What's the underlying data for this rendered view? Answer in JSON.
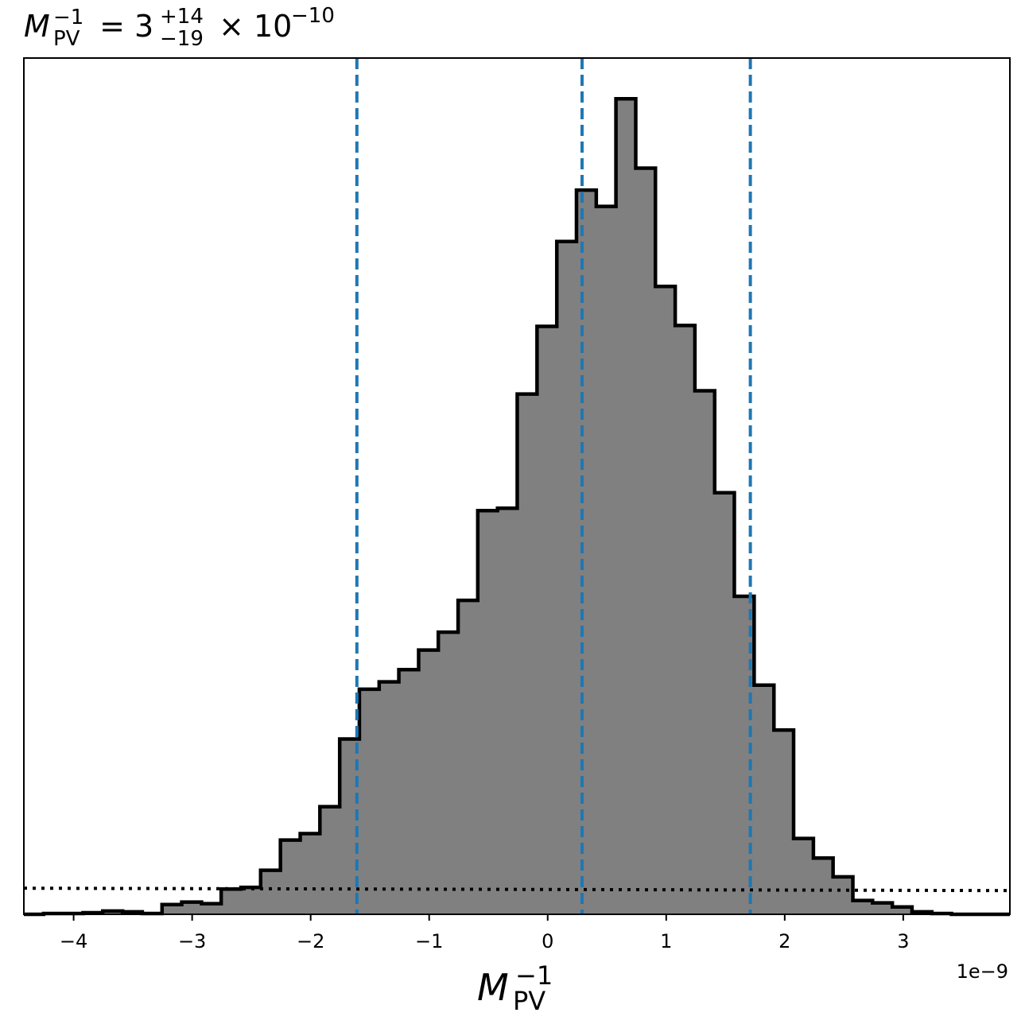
{
  "chart_data": {
    "type": "histogram",
    "title": {
      "base": "M",
      "sup": "−1",
      "sub": "PV",
      "equals": " = 3",
      "plus": "+14",
      "minus": "−19",
      "times": " × 10",
      "exp": "−10"
    },
    "xlabel": {
      "base": "M",
      "sup": "−1",
      "sub": "PV"
    },
    "offset_text": "1e−9",
    "xlim": [
      -4.42,
      3.9
    ],
    "ylim": [
      0,
      1.05
    ],
    "x_ticks": [
      {
        "value": -4,
        "label": "−4"
      },
      {
        "value": -3,
        "label": "−3"
      },
      {
        "value": -2,
        "label": "−2"
      },
      {
        "value": -1,
        "label": "−1"
      },
      {
        "value": 0,
        "label": "0"
      },
      {
        "value": 1,
        "label": "1"
      },
      {
        "value": 2,
        "label": "2"
      },
      {
        "value": 3,
        "label": "3"
      }
    ],
    "bin_edges": [
      -4.42,
      -4.253,
      -4.087,
      -3.92,
      -3.754,
      -3.587,
      -3.421,
      -3.254,
      -3.088,
      -2.921,
      -2.755,
      -2.588,
      -2.422,
      -2.255,
      -2.088,
      -1.922,
      -1.755,
      -1.589,
      -1.422,
      -1.256,
      -1.089,
      -0.923,
      -0.756,
      -0.59,
      -0.423,
      -0.257,
      -0.09,
      0.077,
      0.243,
      0.41,
      0.576,
      0.743,
      0.909,
      1.076,
      1.242,
      1.409,
      1.575,
      1.742,
      1.909,
      2.075,
      2.242,
      2.408,
      2.575,
      2.741,
      2.908,
      3.074,
      3.241,
      3.407,
      3.574,
      3.74,
      3.9
    ],
    "counts": [
      0.0,
      0.001,
      0.001,
      0.002,
      0.004,
      0.003,
      0.001,
      0.012,
      0.015,
      0.013,
      0.031,
      0.033,
      0.054,
      0.091,
      0.099,
      0.132,
      0.215,
      0.276,
      0.285,
      0.3,
      0.324,
      0.346,
      0.385,
      0.495,
      0.498,
      0.638,
      0.721,
      0.825,
      0.888,
      0.868,
      1.0,
      0.915,
      0.77,
      0.722,
      0.642,
      0.517,
      0.39,
      0.281,
      0.226,
      0.093,
      0.069,
      0.046,
      0.017,
      0.014,
      0.009,
      0.003,
      0.001,
      0.0,
      0.0,
      0.0
    ],
    "fill_color": "#808080",
    "edge_color": "#000000",
    "quantile_lines": {
      "values": [
        -1.61,
        0.29,
        1.71
      ],
      "color": "#1f77b4",
      "style": "dashed"
    },
    "prior_line": {
      "y": 0.032,
      "color": "#000000",
      "style": "dotted"
    },
    "grid": false,
    "legend": "none"
  }
}
